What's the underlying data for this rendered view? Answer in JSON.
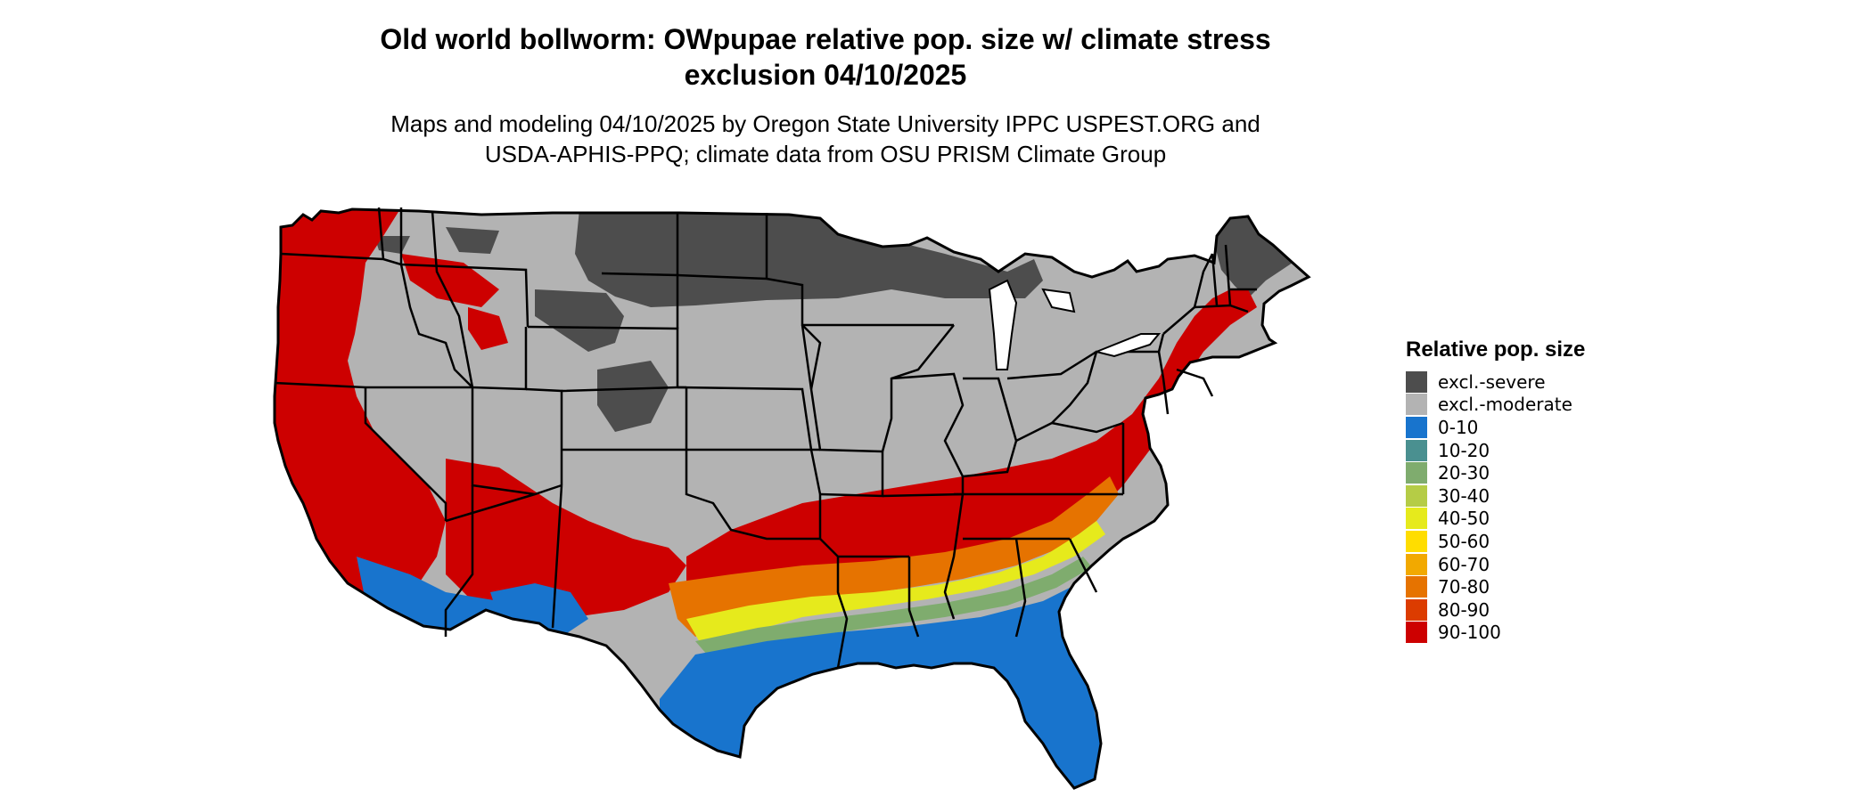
{
  "title_line1": "Old world bollworm: OWpupae relative pop. size w/ climate stress",
  "title_line2": "exclusion 04/10/2025",
  "subtitle_line1": "Maps and modeling 04/10/2025 by Oregon State University IPPC USPEST.ORG and",
  "subtitle_line2": "USDA-APHIS-PPQ; climate data from OSU PRISM Climate Group",
  "legend": {
    "title": "Relative pop. size",
    "items": [
      {
        "label": "excl.-severe",
        "color": "#4d4d4d"
      },
      {
        "label": "excl.-moderate",
        "color": "#b3b3b3"
      },
      {
        "label": "0-10",
        "color": "#1874cd"
      },
      {
        "label": "10-20",
        "color": "#4a9090"
      },
      {
        "label": "20-30",
        "color": "#7fac6e"
      },
      {
        "label": "30-40",
        "color": "#b5cc46"
      },
      {
        "label": "40-50",
        "color": "#e6ea1c"
      },
      {
        "label": "50-60",
        "color": "#ffdd00"
      },
      {
        "label": "60-70",
        "color": "#f2a900"
      },
      {
        "label": "70-80",
        "color": "#e67300"
      },
      {
        "label": "80-90",
        "color": "#dc3c00"
      },
      {
        "label": "90-100",
        "color": "#cd0000"
      }
    ]
  },
  "map": {
    "region": "contiguous-united-states",
    "colors": {
      "severe": "#4d4d4d",
      "moderate": "#b3b3b3",
      "low": "#1874cd",
      "high": "#cd0000",
      "border": "#000000"
    }
  }
}
